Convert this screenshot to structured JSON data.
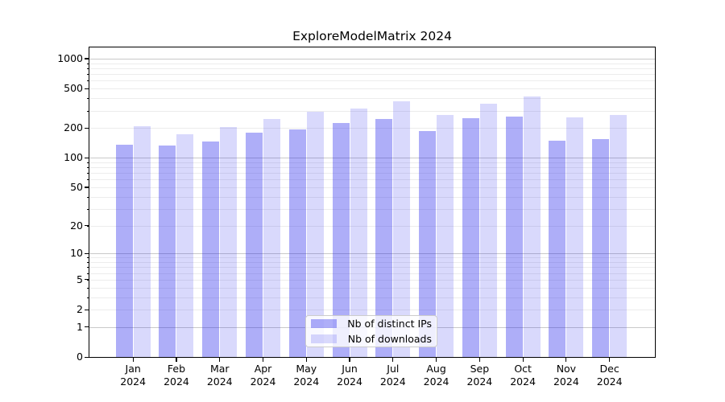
{
  "colors": {
    "bar_distinct_ips": "rgba(30,30,235,0.36)",
    "bar_downloads": "rgba(30,30,235,0.17)",
    "grid_major": "#c9c9c9",
    "grid_minor": "#ececec",
    "spine": "#000000",
    "legend_border": "#cccccc"
  },
  "chart_data": {
    "type": "bar",
    "title": "ExploreModelMatrix 2024",
    "categories": [
      "Jan",
      "Feb",
      "Mar",
      "Apr",
      "May",
      "Jun",
      "Jul",
      "Aug",
      "Sep",
      "Oct",
      "Nov",
      "Dec"
    ],
    "category_subline": "2024",
    "series": [
      {
        "name": "Nb of distinct IPs",
        "values": [
          136,
          133,
          145,
          180,
          192,
          223,
          246,
          185,
          249,
          261,
          149,
          154
        ]
      },
      {
        "name": "Nb of downloads",
        "values": [
          210,
          172,
          203,
          245,
          293,
          312,
          373,
          269,
          352,
          419,
          255,
          269
        ]
      }
    ],
    "xlabel": "",
    "ylabel": "",
    "yscale": "log1p",
    "ylim": [
      0,
      1320
    ],
    "yticks": [
      0,
      1,
      2,
      5,
      10,
      20,
      50,
      100,
      200,
      500,
      1000
    ],
    "y_major_gridlines": [
      1,
      10,
      100,
      1000
    ],
    "y_minor_gridlines": [
      2,
      3,
      4,
      5,
      6,
      7,
      8,
      9,
      20,
      30,
      40,
      50,
      60,
      70,
      80,
      90,
      200,
      300,
      400,
      500,
      600,
      700,
      800,
      900
    ],
    "grid": "horizontal major+minor",
    "legend_position": "lower center"
  },
  "legend": {
    "items": [
      {
        "label": "Nb of distinct IPs",
        "color_key": "bar_distinct_ips"
      },
      {
        "label": "Nb of downloads",
        "color_key": "bar_downloads"
      }
    ]
  }
}
